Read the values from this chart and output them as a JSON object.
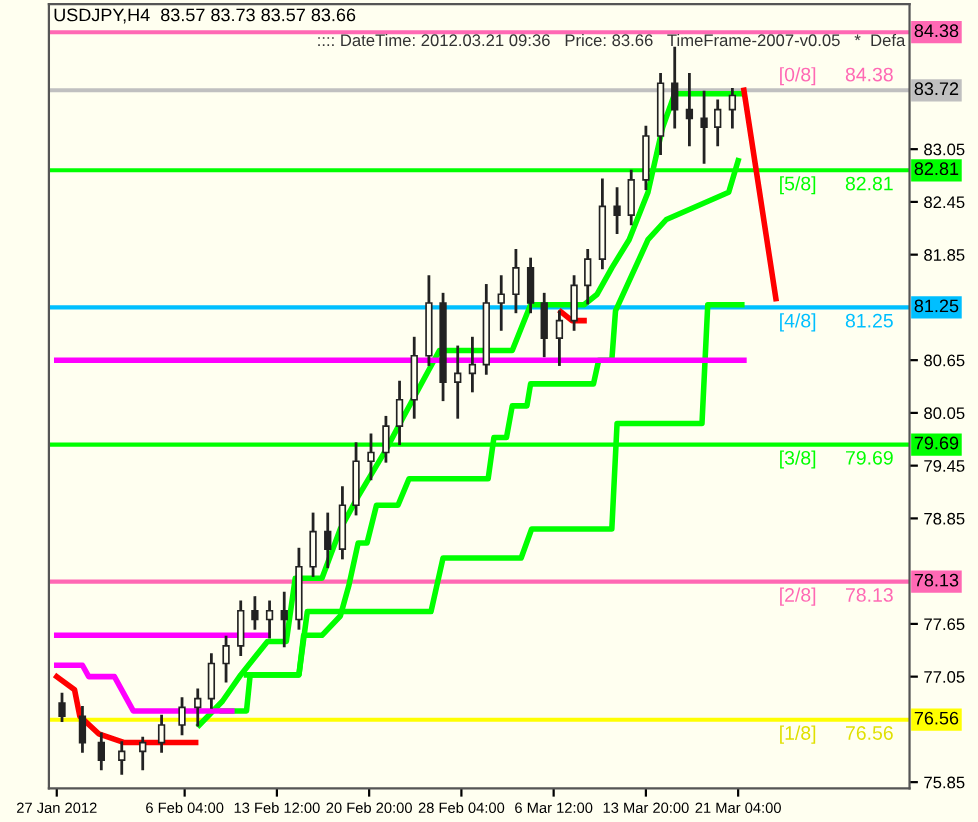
{
  "chart_data": {
    "type": "candlestick",
    "title": "USDJPY,H4  83.57 83.73 83.57 83.66",
    "x": [
      "2012-01-27T10:00",
      "2012-01-29T01:00",
      "2012-01-30T13:00",
      "2012-02-01T04:00",
      "2012-02-02T20:00",
      "2012-02-04T08:00",
      "2012-02-05T23:00",
      "2012-02-07T05:00",
      "2012-02-08T07:00",
      "2012-02-09T11:00",
      "2012-02-10T15:00",
      "2012-02-11T18:00",
      "2012-02-12T22:00",
      "2012-02-14T02:00",
      "2012-02-15T06:00",
      "2012-02-16T09:00",
      "2012-02-17T13:00",
      "2012-02-18T17:00",
      "2012-02-19T19:00",
      "2012-02-20T23:30",
      "2012-02-22T04:00",
      "2012-02-23T06:00",
      "2012-02-24T10:00",
      "2012-02-25T14:00",
      "2012-02-26T17:00",
      "2012-02-27T21:00",
      "2012-02-29T01:00",
      "2012-03-01T03:30",
      "2012-03-02T08:00",
      "2012-03-03T12:00",
      "2012-03-04T16:00",
      "2012-03-05T18:00",
      "2012-03-06T23:00",
      "2012-03-08T03:00",
      "2012-03-09T05:00",
      "2012-03-10T09:00",
      "2012-03-11T13:00",
      "2012-03-12T16:00",
      "2012-03-13T20:00",
      "2012-03-15T00:00",
      "2012-03-16T03:00",
      "2012-03-17T07:00",
      "2012-03-18T11:00",
      "2012-03-19T13:00",
      "2012-03-20T17:00"
    ],
    "ohlc": [
      [
        76.75,
        76.85,
        76.55,
        76.6
      ],
      [
        76.6,
        76.7,
        76.2,
        76.3
      ],
      [
        76.3,
        76.4,
        76.0,
        76.1
      ],
      [
        76.1,
        76.3,
        75.95,
        76.2
      ],
      [
        76.2,
        76.35,
        76.0,
        76.3
      ],
      [
        76.3,
        76.6,
        76.2,
        76.5
      ],
      [
        76.5,
        76.8,
        76.4,
        76.7
      ],
      [
        76.7,
        76.9,
        76.5,
        76.8
      ],
      [
        76.8,
        77.3,
        76.7,
        77.2
      ],
      [
        77.2,
        77.5,
        77.0,
        77.4
      ],
      [
        77.4,
        77.9,
        77.3,
        77.8
      ],
      [
        77.8,
        77.95,
        77.6,
        77.7
      ],
      [
        77.7,
        77.9,
        77.5,
        77.8
      ],
      [
        77.8,
        78.0,
        77.4,
        77.7
      ],
      [
        77.7,
        78.5,
        77.6,
        78.3
      ],
      [
        78.3,
        78.9,
        78.2,
        78.7
      ],
      [
        78.7,
        78.9,
        78.3,
        78.5
      ],
      [
        78.5,
        79.2,
        78.4,
        79.0
      ],
      [
        79.0,
        79.7,
        78.9,
        79.5
      ],
      [
        79.5,
        79.8,
        79.3,
        79.6
      ],
      [
        79.6,
        80.0,
        79.5,
        79.9
      ],
      [
        79.9,
        80.4,
        79.7,
        80.2
      ],
      [
        80.2,
        80.9,
        80.0,
        80.7
      ],
      [
        80.7,
        81.6,
        80.6,
        81.3
      ],
      [
        81.3,
        81.4,
        80.2,
        80.4
      ],
      [
        80.4,
        80.8,
        80.0,
        80.5
      ],
      [
        80.5,
        80.9,
        80.3,
        80.6
      ],
      [
        80.6,
        81.5,
        80.5,
        81.3
      ],
      [
        81.3,
        81.6,
        81.0,
        81.4
      ],
      [
        81.4,
        81.9,
        81.2,
        81.7
      ],
      [
        81.7,
        81.8,
        81.2,
        81.3
      ],
      [
        81.3,
        81.4,
        80.7,
        80.9
      ],
      [
        80.9,
        81.2,
        80.6,
        81.1
      ],
      [
        81.1,
        81.6,
        81.0,
        81.5
      ],
      [
        81.5,
        81.9,
        81.3,
        81.8
      ],
      [
        81.8,
        82.7,
        81.7,
        82.4
      ],
      [
        82.4,
        82.6,
        82.1,
        82.3
      ],
      [
        82.3,
        82.8,
        82.2,
        82.7
      ],
      [
        82.7,
        83.3,
        82.6,
        83.2
      ],
      [
        83.2,
        83.9,
        83.0,
        83.8
      ],
      [
        83.8,
        84.2,
        83.3,
        83.5
      ],
      [
        83.5,
        83.9,
        83.1,
        83.4
      ],
      [
        83.4,
        83.7,
        82.9,
        83.3
      ],
      [
        83.3,
        83.6,
        83.1,
        83.5
      ],
      [
        83.5,
        83.73,
        83.3,
        83.66
      ]
    ],
    "series": [
      {
        "type": "line",
        "color": "#00ff00",
        "x": [
          "2012-02-07T08:00",
          "2012-02-09T04:00",
          "2012-02-10T15:00",
          "2012-02-12T18:00",
          "2012-02-14T06:00",
          "2012-02-14T23:00",
          "2012-02-17T02:00",
          "2012-02-18T13:00",
          "2012-02-19T23:00",
          "2012-02-22T04:00",
          "2012-02-23T13:00",
          "2012-02-26T10:00",
          "2012-03-03T05:00",
          "2012-03-04T16:00",
          "2012-03-08T22:00",
          "2012-03-09T23:00",
          "2012-03-11T03:00",
          "2012-03-12T12:00",
          "2012-03-14T00:00",
          "2012-03-15T04:00",
          "2012-03-16T03:00",
          "2012-03-21T11:00"
        ],
        "values": [
          76.5,
          76.77,
          77.07,
          77.45,
          77.45,
          78.17,
          78.17,
          78.73,
          79.1,
          79.63,
          80.0,
          80.76,
          80.76,
          81.28,
          81.28,
          81.4,
          81.7,
          82.02,
          82.56,
          83.3,
          83.68,
          83.68
        ]
      },
      {
        "type": "line",
        "color": "#00ff00",
        "x": [
          "2012-02-09T04:00",
          "2012-02-11T02:00",
          "2012-02-11T09:00",
          "2012-02-15T06:00",
          "2012-02-15T15:00",
          "2012-02-17T02:00",
          "2012-02-18T13:00",
          "2012-02-19T05:00",
          "2012-02-19T23:00",
          "2012-02-20T16:00",
          "2012-02-21T10:00",
          "2012-02-23T03:00",
          "2012-02-24T00:00",
          "2012-03-01T07:00",
          "2012-03-01T18:00",
          "2012-03-02T18:00",
          "2012-03-03T05:00",
          "2012-03-04T09:00",
          "2012-03-04T16:00",
          "2012-03-09T16:00",
          "2012-03-10T02:00",
          "2012-03-11T03:00",
          "2012-03-11T10:00",
          "2012-03-14T00:00",
          "2012-03-15T11:00",
          "2012-03-20T10:00",
          "2012-03-21T04:00"
        ],
        "values": [
          76.66,
          76.66,
          77.07,
          77.07,
          77.52,
          77.52,
          77.74,
          78.08,
          78.57,
          78.57,
          79.0,
          79.0,
          79.3,
          79.3,
          79.77,
          79.77,
          80.13,
          80.13,
          80.38,
          80.38,
          80.65,
          80.65,
          81.21,
          82.02,
          82.25,
          82.56,
          82.92
        ]
      },
      {
        "type": "line",
        "color": "#00ff00",
        "x": [
          "2012-02-11T02:00",
          "2012-02-15T06:00",
          "2012-02-15T22:00",
          "2012-02-25T18:00",
          "2012-02-26T17:00",
          "2012-03-03T22:00",
          "2012-03-04T18:00",
          "2012-03-11T03:00",
          "2012-03-11T13:00",
          "2012-03-18T07:00",
          "2012-03-18T18:00",
          "2012-03-21T11:00"
        ],
        "values": [
          77.07,
          77.07,
          77.79,
          77.79,
          78.4,
          78.4,
          78.73,
          78.73,
          79.93,
          79.93,
          81.28,
          81.28
        ]
      },
      {
        "type": "line",
        "color": "#ff00ff",
        "x": [
          "2012-01-27T00:00",
          "2012-01-29T01:00",
          "2012-01-29T13:00",
          "2012-01-31T14:00",
          "2012-02-02T02:00",
          "2012-02-09T22:00"
        ],
        "values": [
          77.18,
          77.18,
          77.05,
          77.05,
          76.66,
          76.66
        ]
      },
      {
        "type": "line",
        "color": "#ff00ff",
        "x": [
          "2012-01-27T00:00",
          "2012-02-12T18:00"
        ],
        "values": [
          77.52,
          77.52
        ]
      },
      {
        "type": "line",
        "color": "#ff00ff",
        "x": [
          "2012-01-27T00:00",
          "2012-03-21T15:00"
        ],
        "values": [
          80.65,
          80.65
        ]
      },
      {
        "type": "line",
        "color": "#ff0000",
        "x": [
          "2012-01-27T00:00",
          "2012-01-28T10:00",
          "2012-01-28T20:00",
          "2012-01-30T08:00",
          "2012-02-01T09:00",
          "2012-02-07T01:00"
        ],
        "values": [
          77.05,
          76.9,
          76.6,
          76.4,
          76.3,
          76.3
        ]
      },
      {
        "type": "line",
        "color": "#ff0000",
        "x": [
          "2012-03-07T02:00",
          "2012-03-07T23:00",
          "2012-03-08T22:00"
        ],
        "values": [
          81.2,
          81.1,
          81.1
        ]
      },
      {
        "type": "line",
        "color": "#ff0000",
        "x": [
          "2012-03-21T15:00",
          "2012-03-24T04:00"
        ],
        "values": [
          83.72,
          81.35
        ]
      }
    ],
    "ref_lines": [
      {
        "axis": "y",
        "value": 84.38,
        "label": "84.38",
        "color": "#ff69b4"
      },
      {
        "axis": "y",
        "value": 82.81,
        "label": "82.81",
        "color": "#00ff00"
      },
      {
        "axis": "y",
        "value": 81.25,
        "label": "81.25",
        "color": "#00bfff"
      },
      {
        "axis": "y",
        "value": 79.69,
        "label": "79.69",
        "color": "#00ff00"
      },
      {
        "axis": "y",
        "value": 78.13,
        "label": "78.13",
        "color": "#ff69b4"
      },
      {
        "axis": "y",
        "value": 76.56,
        "label": "76.56",
        "color": "#ffff00"
      },
      {
        "axis": "y",
        "value": 83.72,
        "label": "83.72",
        "color": "#c0c0c0"
      }
    ],
    "annotations": [
      ":::: DateTime: 2012.03.21 09:36   Price: 83.66   TimeFrame-2007-v0.05   *  Defa",
      "[0/8]",
      "84.38",
      "[5/8]",
      "82.81",
      "[4/8]",
      "81.25",
      "[3/8]",
      "79.69",
      "[2/8]",
      "78.13",
      "[1/8]",
      "76.56"
    ],
    "xlim": [
      "2012-01-26T09:00",
      "2012-04-03T19:00"
    ],
    "ylim": [
      75.78,
      84.7
    ],
    "xticks": [
      {
        "value": "2012-01-27",
        "label": "27 Jan 2012"
      },
      {
        "value": "2012-02-06T04:00",
        "label": "6 Feb 04:00"
      },
      {
        "value": "2012-02-13T12:00",
        "label": "13 Feb 12:00"
      },
      {
        "value": "2012-02-20T20:00",
        "label": "20 Feb 20:00"
      },
      {
        "value": "2012-02-28T04:00",
        "label": "28 Feb 04:00"
      },
      {
        "value": "2012-03-06T12:00",
        "label": "6 Mar 12:00"
      },
      {
        "value": "2012-03-13T20:00",
        "label": "13 Mar 20:00"
      },
      {
        "value": "2012-03-21T04:00",
        "label": "21 Mar 04:00"
      }
    ],
    "yticks": [
      75.85,
      77.05,
      77.65,
      78.85,
      79.45,
      80.05,
      80.65,
      81.85,
      82.45,
      83.05
    ],
    "grid": false
  }
}
